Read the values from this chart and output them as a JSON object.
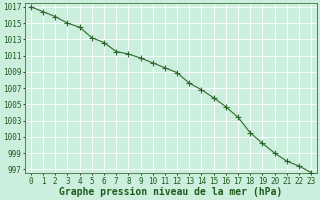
{
  "x": [
    0,
    1,
    2,
    3,
    4,
    5,
    6,
    7,
    8,
    9,
    10,
    11,
    12,
    13,
    14,
    15,
    16,
    17,
    18,
    19,
    20,
    21,
    22,
    23
  ],
  "y": [
    1017.0,
    1016.4,
    1015.8,
    1015.0,
    1014.5,
    1013.2,
    1012.6,
    1011.5,
    1011.2,
    1010.7,
    1010.1,
    1009.5,
    1008.9,
    1007.6,
    1006.8,
    1005.8,
    1004.7,
    1003.4,
    1001.5,
    1000.2,
    999.0,
    998.0,
    997.4,
    996.6
  ],
  "line_color": "#2d6a2d",
  "marker": "+",
  "marker_size": 4,
  "xlabel": "Graphe pression niveau de la mer (hPa)",
  "ylim_min": 996.5,
  "ylim_max": 1017.5,
  "yticks": [
    997,
    999,
    1001,
    1003,
    1005,
    1007,
    1009,
    1011,
    1013,
    1015,
    1017
  ],
  "xtick_values": [
    0,
    1,
    2,
    3,
    4,
    5,
    6,
    7,
    8,
    9,
    10,
    11,
    12,
    13,
    14,
    15,
    16,
    17,
    18,
    19,
    20,
    21,
    22,
    23
  ],
  "background_color": "#cceedd",
  "grid_color": "#ffffff",
  "text_color": "#1e5c1e",
  "xlabel_fontsize": 7,
  "tick_fontsize": 5.5
}
